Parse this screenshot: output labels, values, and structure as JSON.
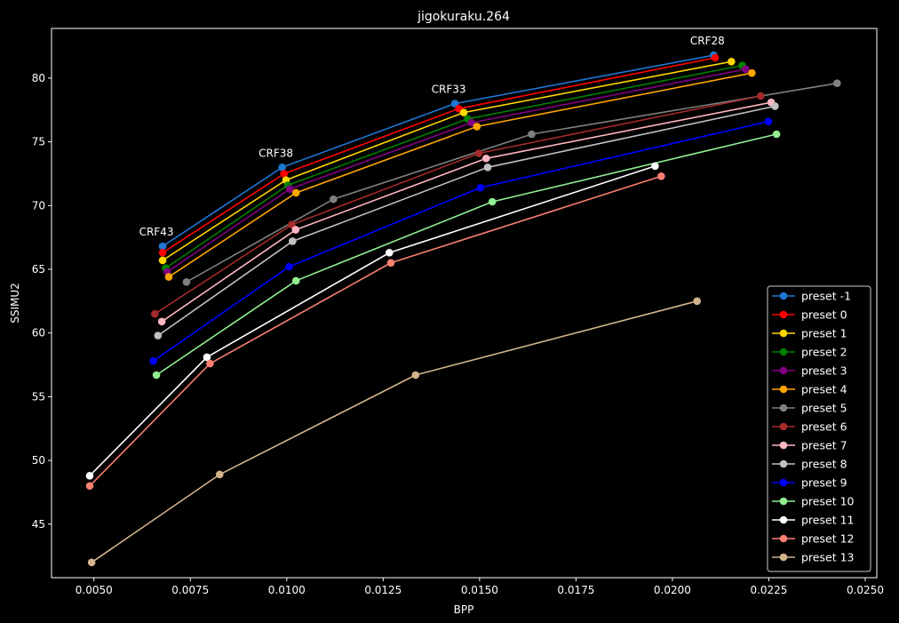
{
  "chart_data": {
    "type": "line",
    "title": "jigokuraku.264",
    "xlabel": "BPP",
    "ylabel": "SSIMU2",
    "xlim": [
      0.0039,
      0.0253
    ],
    "ylim": [
      40.8,
      83.9
    ],
    "xticks": [
      0.005,
      0.0075,
      0.01,
      0.0125,
      0.015,
      0.0175,
      0.02,
      0.0225,
      0.025
    ],
    "xtick_labels": [
      "0.0050",
      "0.0075",
      "0.0100",
      "0.0125",
      "0.0150",
      "0.0175",
      "0.0200",
      "0.0225",
      "0.0250"
    ],
    "yticks": [
      45,
      50,
      55,
      60,
      65,
      70,
      75,
      80
    ],
    "ytick_labels": [
      "45",
      "50",
      "55",
      "60",
      "65",
      "70",
      "75",
      "80"
    ],
    "grid": false,
    "legend_position": "bottom-right",
    "background": "#000000",
    "foreground": "#ffffff",
    "annotations": [
      {
        "text": "CRF43",
        "x": 0.00678,
        "y": 66.8
      },
      {
        "text": "CRF38",
        "x": 0.00988,
        "y": 73.0
      },
      {
        "text": "CRF33",
        "x": 0.01436,
        "y": 78.0
      },
      {
        "text": "CRF28",
        "x": 0.02107,
        "y": 81.8
      }
    ],
    "series": [
      {
        "name": "preset -1",
        "color": "#1f77d4",
        "x": [
          0.00678,
          0.00988,
          0.01436,
          0.02107
        ],
        "y": [
          66.8,
          73.0,
          78.0,
          81.8
        ]
      },
      {
        "name": "preset 0",
        "color": "#ff0000",
        "x": [
          0.00678,
          0.00993,
          0.01446,
          0.02111
        ],
        "y": [
          66.3,
          72.5,
          77.6,
          81.6
        ]
      },
      {
        "name": "preset 1",
        "color": "#ffd700",
        "x": [
          0.00678,
          0.00998,
          0.01459,
          0.02153
        ],
        "y": [
          65.7,
          72.0,
          77.3,
          81.3
        ]
      },
      {
        "name": "preset 2",
        "color": "#008000",
        "x": [
          0.00686,
          0.01003,
          0.01469,
          0.02181
        ],
        "y": [
          65.1,
          71.6,
          76.8,
          81.0
        ]
      },
      {
        "name": "preset 3",
        "color": "#800080",
        "x": [
          0.0069,
          0.01008,
          0.01479,
          0.0219
        ],
        "y": [
          64.8,
          71.3,
          76.5,
          80.7
        ]
      },
      {
        "name": "preset 4",
        "color": "#ffa500",
        "x": [
          0.00694,
          0.01024,
          0.01493,
          0.02206
        ],
        "y": [
          64.4,
          71.0,
          76.2,
          80.4
        ]
      },
      {
        "name": "preset 5",
        "color": "#808080",
        "x": [
          0.0074,
          0.01121,
          0.01635,
          0.02427
        ],
        "y": [
          64.0,
          70.5,
          75.6,
          79.6
        ]
      },
      {
        "name": "preset 6",
        "color": "#a52a2a",
        "x": [
          0.00658,
          0.01013,
          0.01498,
          0.02229
        ],
        "y": [
          61.5,
          68.5,
          74.1,
          78.6
        ]
      },
      {
        "name": "preset 7",
        "color": "#ffb6c1",
        "x": [
          0.00676,
          0.01023,
          0.01517,
          0.02256
        ],
        "y": [
          60.9,
          68.1,
          73.7,
          78.1
        ]
      },
      {
        "name": "preset 8",
        "color": "#c0c0c0",
        "x": [
          0.00666,
          0.01015,
          0.01521,
          0.02266
        ],
        "y": [
          59.8,
          67.2,
          73.0,
          77.8
        ]
      },
      {
        "name": "preset 9",
        "color": "#0000ff",
        "x": [
          0.00654,
          0.01006,
          0.01502,
          0.02249
        ],
        "y": [
          57.8,
          65.2,
          71.4,
          76.6
        ]
      },
      {
        "name": "preset 10",
        "color": "#90ee90",
        "x": [
          0.00662,
          0.01024,
          0.01533,
          0.0227
        ],
        "y": [
          56.7,
          64.1,
          70.3,
          75.6
        ]
      },
      {
        "name": "preset 11",
        "color": "#ffffff",
        "x": [
          0.00489,
          0.00793,
          0.01266,
          0.01955
        ],
        "y": [
          48.8,
          58.1,
          66.3,
          73.1
        ]
      },
      {
        "name": "preset 12",
        "color": "#fa8072",
        "x": [
          0.00489,
          0.00801,
          0.0127,
          0.01971
        ],
        "y": [
          48.0,
          57.6,
          65.5,
          72.3
        ]
      },
      {
        "name": "preset 13",
        "color": "#d2b48c",
        "x": [
          0.00494,
          0.00826,
          0.01334,
          0.02064
        ],
        "y": [
          42.0,
          48.9,
          56.7,
          62.5
        ]
      }
    ]
  }
}
